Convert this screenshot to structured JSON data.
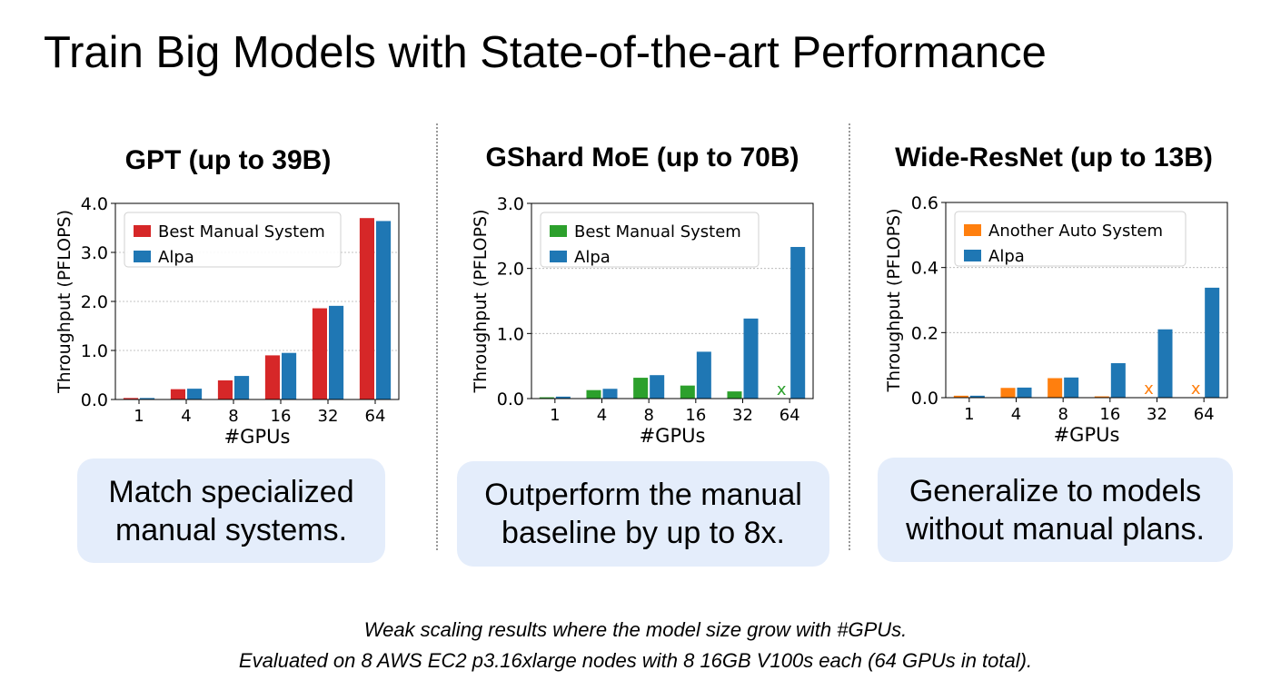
{
  "slide_title": "Train Big Models with State-of-the-art Performance",
  "colors": {
    "red": "#d62728",
    "blue": "#1f77b4",
    "green": "#2ca02c",
    "orange": "#ff7f0e",
    "callout_bg": "#e4edfb"
  },
  "chart_data": [
    {
      "type": "bar",
      "title": "GPT (up to 39B)",
      "xlabel": "#GPUs",
      "ylabel": "Throughput (PFLOPS)",
      "categories": [
        "1",
        "4",
        "8",
        "16",
        "32",
        "64"
      ],
      "ylim": [
        0,
        4.0
      ],
      "yticks": [
        0,
        1,
        2,
        3,
        4
      ],
      "ytick_labels": [
        "0.0",
        "1.0",
        "2.0",
        "3.0",
        "4.0"
      ],
      "grid": true,
      "legend_position": "top-left",
      "series": [
        {
          "name": "Best Manual System",
          "color": "#d62728",
          "values": [
            0.03,
            0.21,
            0.39,
            0.9,
            1.86,
            3.7
          ]
        },
        {
          "name": "Alpa",
          "color": "#1f77b4",
          "values": [
            0.03,
            0.22,
            0.48,
            0.95,
            1.91,
            3.64
          ]
        }
      ],
      "failed_marker": "x",
      "failed": []
    },
    {
      "type": "bar",
      "title": "GShard MoE (up to 70B)",
      "xlabel": "#GPUs",
      "ylabel": "Throughput (PFLOPS)",
      "categories": [
        "1",
        "4",
        "8",
        "16",
        "32",
        "64"
      ],
      "ylim": [
        0,
        3.0
      ],
      "yticks": [
        0,
        1,
        2,
        3
      ],
      "ytick_labels": [
        "0.0",
        "1.0",
        "2.0",
        "3.0"
      ],
      "grid": true,
      "legend_position": "top-left",
      "series": [
        {
          "name": "Best Manual System",
          "color": "#2ca02c",
          "values": [
            0.02,
            0.13,
            0.32,
            0.2,
            0.11,
            null
          ]
        },
        {
          "name": "Alpa",
          "color": "#1f77b4",
          "values": [
            0.03,
            0.15,
            0.36,
            0.72,
            1.23,
            2.33
          ]
        }
      ],
      "failed_marker": "x",
      "failed": [
        {
          "series": 0,
          "category": 5
        }
      ]
    },
    {
      "type": "bar",
      "title": "Wide-ResNet (up to 13B)",
      "xlabel": "#GPUs",
      "ylabel": "Throughput (PFLOPS)",
      "categories": [
        "1",
        "4",
        "8",
        "16",
        "32",
        "64"
      ],
      "ylim": [
        0,
        0.6
      ],
      "yticks": [
        0,
        0.2,
        0.4,
        0.6
      ],
      "ytick_labels": [
        "0.0",
        "0.2",
        "0.4",
        "0.6"
      ],
      "grid": true,
      "legend_position": "top-left",
      "series": [
        {
          "name": "Another Auto System",
          "color": "#ff7f0e",
          "values": [
            0.006,
            0.03,
            0.06,
            0.004,
            null,
            null
          ]
        },
        {
          "name": "Alpa",
          "color": "#1f77b4",
          "values": [
            0.006,
            0.031,
            0.062,
            0.106,
            0.21,
            0.338
          ]
        }
      ],
      "failed_marker": "x",
      "failed": [
        {
          "series": 0,
          "category": 4
        },
        {
          "series": 0,
          "category": 5
        }
      ]
    }
  ],
  "callouts": [
    {
      "line1": "Match specialized",
      "line2": "manual systems."
    },
    {
      "line1": "Outperform the manual",
      "line2": "baseline by up to 8x."
    },
    {
      "line1": "Generalize to models",
      "line2": "without manual plans."
    }
  ],
  "caption": {
    "line1": "Weak scaling results where the model size grow with #GPUs.",
    "line2": "Evaluated on 8 AWS EC2 p3.16xlarge nodes with 8 16GB V100s each (64 GPUs in total)."
  }
}
